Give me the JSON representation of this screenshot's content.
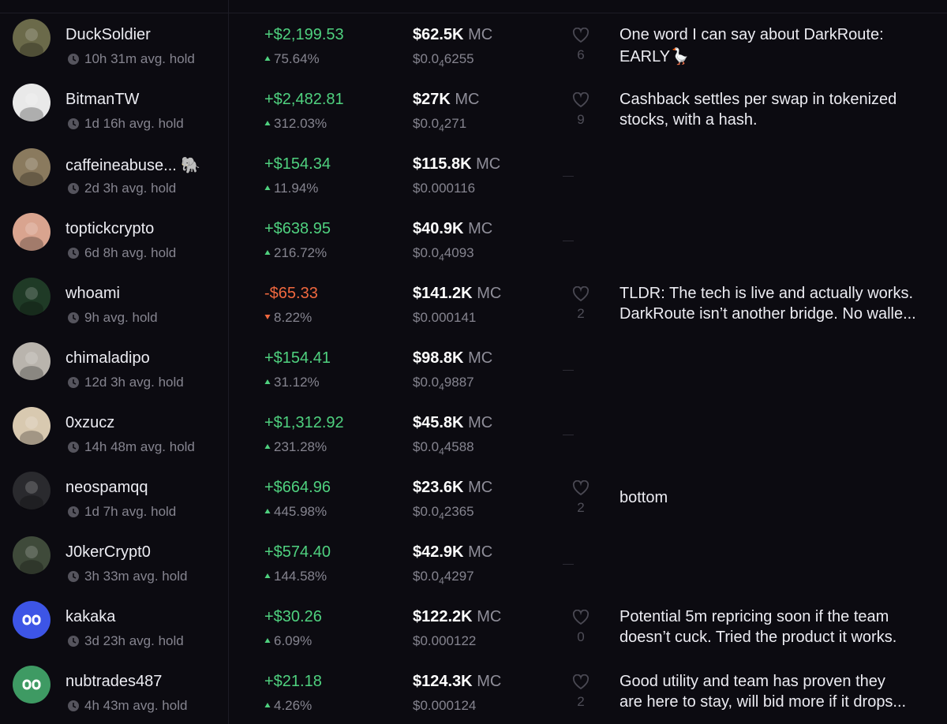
{
  "rows": [
    {
      "name": "DuckSoldier",
      "hold": "10h 31m avg. hold",
      "pnl": "+$2,199.53",
      "pct": "75.64%",
      "color": "#4fd17f",
      "avatar": "#6b6a4a",
      "mc": "$62.5K",
      "mc_unit": "MC",
      "price": {
        "text": "$0.0",
        "sub": "4",
        "rest": "6255"
      },
      "likes": 6,
      "comment": [
        "One word I can say about DarkRoute:",
        "EARLY🪿"
      ]
    },
    {
      "name": "BitmanTW",
      "hold": "1d 16h avg. hold",
      "pnl": "+$2,482.81",
      "pct": "312.03%",
      "color": "#4fd17f",
      "avatar": "#e9e9e9",
      "mc": "$27K",
      "mc_unit": "MC",
      "price": {
        "text": "$0.0",
        "sub": "4",
        "rest": "271"
      },
      "likes": 9,
      "comment": [
        "Cashback settles per swap in tokenized",
        "stocks, with a hash."
      ]
    },
    {
      "name": "caffeineabuse... 🐘",
      "hold": "2d 3h avg. hold",
      "pnl": "+$154.34",
      "pct": "11.94%",
      "color": "#4fd17f",
      "avatar": "#8a7a5e",
      "mc": "$115.8K",
      "mc_unit": "MC",
      "price": {
        "text": "$0.000116"
      },
      "likes": null,
      "comment": null
    },
    {
      "name": "toptickcrypto",
      "hold": "6d 8h avg. hold",
      "pnl": "+$638.95",
      "pct": "216.72%",
      "color": "#4fd17f",
      "avatar": "#d9a48f",
      "mc": "$40.9K",
      "mc_unit": "MC",
      "price": {
        "text": "$0.0",
        "sub": "4",
        "rest": "4093"
      },
      "likes": null,
      "comment": null
    },
    {
      "name": "whoami",
      "hold": "9h avg. hold",
      "pnl": "-$65.33",
      "pct": "8.22%",
      "color": "#f0683f",
      "avatar": "#1f3a26",
      "mc": "$141.2K",
      "mc_unit": "MC",
      "price": {
        "text": "$0.000141"
      },
      "likes": 2,
      "comment": [
        "TLDR: The tech is live and actually works.",
        "DarkRoute isn’t another bridge. No walle..."
      ]
    },
    {
      "name": "chimaladipo",
      "hold": "12d 3h avg. hold",
      "pnl": "+$154.41",
      "pct": "31.12%",
      "color": "#4fd17f",
      "avatar": "#b9b4ad",
      "mc": "$98.8K",
      "mc_unit": "MC",
      "price": {
        "text": "$0.0",
        "sub": "4",
        "rest": "9887"
      },
      "likes": null,
      "comment": null
    },
    {
      "name": "0xzucz",
      "hold": "14h 48m avg. hold",
      "pnl": "+$1,312.92",
      "pct": "231.28%",
      "color": "#4fd17f",
      "avatar": "#d8c9b0",
      "mc": "$45.8K",
      "mc_unit": "MC",
      "price": {
        "text": "$0.0",
        "sub": "4",
        "rest": "4588"
      },
      "likes": null,
      "comment": null
    },
    {
      "name": "neospamqq",
      "hold": "1d 7h avg. hold",
      "pnl": "+$664.96",
      "pct": "445.98%",
      "color": "#4fd17f",
      "avatar": "#2a2a2e",
      "mc": "$23.6K",
      "mc_unit": "MC",
      "price": {
        "text": "$0.0",
        "sub": "4",
        "rest": "2365"
      },
      "likes": 2,
      "comment": [
        "bottom"
      ]
    },
    {
      "name": "J0kerCrypt0",
      "hold": "3h 33m avg. hold",
      "pnl": "+$574.40",
      "pct": "144.58%",
      "color": "#4fd17f",
      "avatar": "#3f4a3a",
      "mc": "$42.9K",
      "mc_unit": "MC",
      "price": {
        "text": "$0.0",
        "sub": "4",
        "rest": "4297"
      },
      "likes": null,
      "comment": null
    },
    {
      "name": "kakaka",
      "hold": "3d 23h avg. hold",
      "pnl": "+$30.26",
      "pct": "6.09%",
      "color": "#4fd17f",
      "avatar": "#3d55e6",
      "mc": "$122.2K",
      "mc_unit": "MC",
      "price": {
        "text": "$0.000122"
      },
      "likes": 0,
      "comment": [
        "Potential 5m repricing soon if the team",
        "doesn’t cuck. Tried the product it works."
      ]
    },
    {
      "name": "nubtrades487",
      "hold": "4h 43m avg. hold",
      "pnl": "+$21.18",
      "pct": "4.26%",
      "color": "#4fd17f",
      "avatar": "#3e9a63",
      "mc": "$124.3K",
      "mc_unit": "MC",
      "price": {
        "text": "$0.000124"
      },
      "likes": 2,
      "comment": [
        "Good utility and team has proven they",
        "are here to stay, will bid more if it drops..."
      ]
    }
  ]
}
